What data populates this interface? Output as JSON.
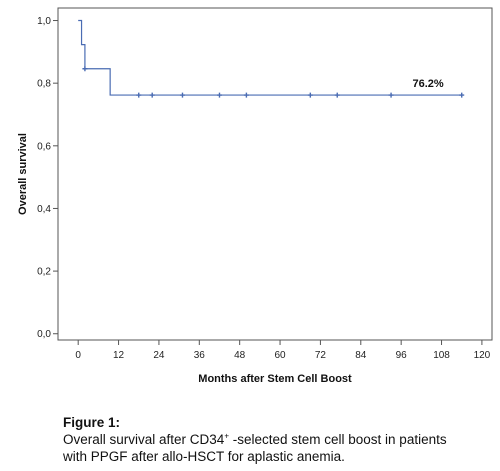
{
  "chart_data": {
    "type": "line",
    "subtype": "kaplan-meier",
    "xlabel": "Months after Stem Cell Boost",
    "ylabel": "Overall survival",
    "xlim": [
      -6,
      123
    ],
    "ylim": [
      -0.02,
      1.04
    ],
    "x_ticks": [
      0,
      12,
      24,
      36,
      48,
      60,
      72,
      84,
      96,
      108,
      120
    ],
    "y_ticks": [
      0.0,
      0.2,
      0.4,
      0.6,
      0.8,
      1.0
    ],
    "y_tick_labels": [
      "0,0",
      "0,2",
      "0,4",
      "0,6",
      "0,8",
      "1,0"
    ],
    "grid": false,
    "color": "#4a6cb3",
    "steps": [
      {
        "x": 0,
        "y": 1.0
      },
      {
        "x": 1,
        "y": 0.923
      },
      {
        "x": 2,
        "y": 0.846
      },
      {
        "x": 9.5,
        "y": 0.762
      },
      {
        "x": 114,
        "y": 0.762
      }
    ],
    "censored": [
      {
        "x": 2,
        "y": 0.846
      },
      {
        "x": 18,
        "y": 0.762
      },
      {
        "x": 22,
        "y": 0.762
      },
      {
        "x": 31,
        "y": 0.762
      },
      {
        "x": 42,
        "y": 0.762
      },
      {
        "x": 50,
        "y": 0.762
      },
      {
        "x": 69,
        "y": 0.762
      },
      {
        "x": 77,
        "y": 0.762
      },
      {
        "x": 93,
        "y": 0.762
      },
      {
        "x": 114,
        "y": 0.762
      }
    ],
    "annotation": {
      "text": "76.2%",
      "x": 104,
      "y": 0.762
    }
  },
  "caption": {
    "label": "Figure 1:",
    "line1_before": "Overall survival after CD34",
    "line1_sup": "+",
    "line1_after": " -selected stem cell boost in patients",
    "line2": "with PPGF after allo-HSCT for aplastic anemia."
  }
}
